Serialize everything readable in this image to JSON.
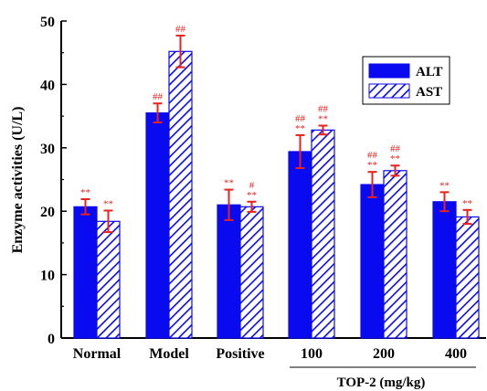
{
  "chart_data": {
    "type": "bar",
    "categories": [
      "Normal",
      "Model",
      "Positive",
      "100",
      "200",
      "400"
    ],
    "series": [
      {
        "name": "ALT",
        "values": [
          20.7,
          35.5,
          21.0,
          29.4,
          24.2,
          21.5
        ],
        "errors": [
          1.2,
          1.5,
          2.4,
          2.6,
          2.0,
          1.5
        ],
        "annotations": [
          "**",
          "##",
          "**",
          "##|**",
          "##|**",
          "**"
        ],
        "fill": "solid",
        "color": "#0a0af0"
      },
      {
        "name": "AST",
        "values": [
          18.4,
          45.2,
          20.7,
          32.8,
          26.4,
          19.1
        ],
        "errors": [
          1.7,
          2.5,
          0.8,
          0.7,
          0.8,
          1.1
        ],
        "annotations": [
          "**",
          "##",
          "#|**",
          "##|**",
          "##|**",
          "**"
        ],
        "fill": "hatched",
        "color": "#0a0af0"
      }
    ],
    "ylabel": "Enzyme activities (U/L)",
    "xlabel": "",
    "ylim": [
      0,
      50
    ],
    "yticks": [
      0,
      10,
      20,
      30,
      40,
      50
    ],
    "group_label": "TOP-2 (mg/kg)",
    "group_span": [
      "100",
      "400"
    ],
    "legend_position": "top-right",
    "error_bar_color": "#e8221c",
    "annotation_color": "#e8221c",
    "grid": false
  }
}
